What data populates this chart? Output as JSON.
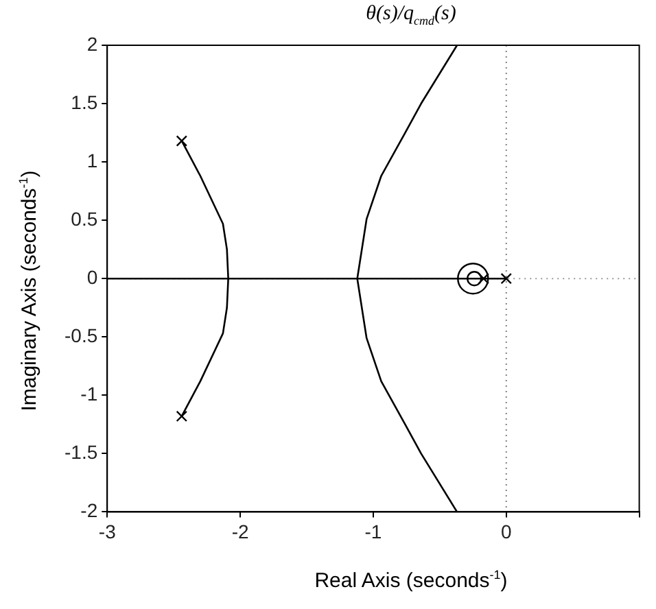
{
  "chart_data": {
    "type": "line",
    "title": "θ(s)/q$_{cmd}$(s)",
    "xlabel": "Real Axis (seconds$^{-1}$)",
    "ylabel": "Imaginary Axis (seconds$^{-1}$)",
    "xlim": [
      -3,
      1
    ],
    "xticks": [
      -3,
      -2,
      -1,
      0,
      {
        "value": 1,
        "label": null
      }
    ],
    "ylim": [
      -2,
      2
    ],
    "yticks": [
      -2,
      -1.5,
      -1,
      -0.5,
      0,
      0.5,
      1,
      1.5,
      2
    ],
    "grid": false,
    "legend": false,
    "ref_lines": [
      {
        "axis": "x",
        "value": 0,
        "label": null,
        "color": "#808080",
        "line_style": "dotted"
      },
      {
        "axis": "y",
        "value": 0,
        "label": null,
        "color": "#999999",
        "line_style": "dotted"
      }
    ],
    "series": [
      {
        "type": "line",
        "color": "#000000",
        "marker": "none",
        "x": [
          -3,
          0
        ],
        "values": [
          0,
          0
        ]
      },
      {
        "type": "line",
        "color": "#000000",
        "marker": "none",
        "x": [
          -2.44,
          -2.3,
          -2.13,
          -2.1,
          -2.09,
          -2.1,
          -2.13,
          -2.3,
          -2.44
        ],
        "values": [
          1.18,
          0.88,
          0.47,
          0.25,
          0,
          -0.25,
          -0.47,
          -0.88,
          -1.18
        ]
      },
      {
        "type": "line",
        "color": "#000000",
        "marker": "none",
        "x": [
          -0.37,
          -0.64,
          -0.76,
          -0.94,
          -1.05,
          -1.12,
          -1.05,
          -0.94,
          -0.76,
          -0.64,
          -0.37
        ],
        "values": [
          2,
          1.5,
          1.25,
          0.88,
          0.51,
          0,
          -0.51,
          -0.88,
          -1.25,
          -1.5,
          -2
        ]
      },
      {
        "type": "scatter",
        "color": "#000000",
        "marker": "cross",
        "x": [
          -2.44,
          -2.44,
          -0.17,
          0
        ],
        "values": [
          1.18,
          -1.18,
          0,
          0
        ]
      },
      {
        "type": "scatter",
        "color": "#000000",
        "marker": "circle",
        "x": [
          -0.24
        ],
        "values": [
          0
        ]
      },
      {
        "type": "bubble",
        "color": "#000000",
        "marker": "circle",
        "x": [
          -0.25
        ],
        "values": [
          0
        ],
        "sizes": [
          1
        ]
      }
    ]
  }
}
